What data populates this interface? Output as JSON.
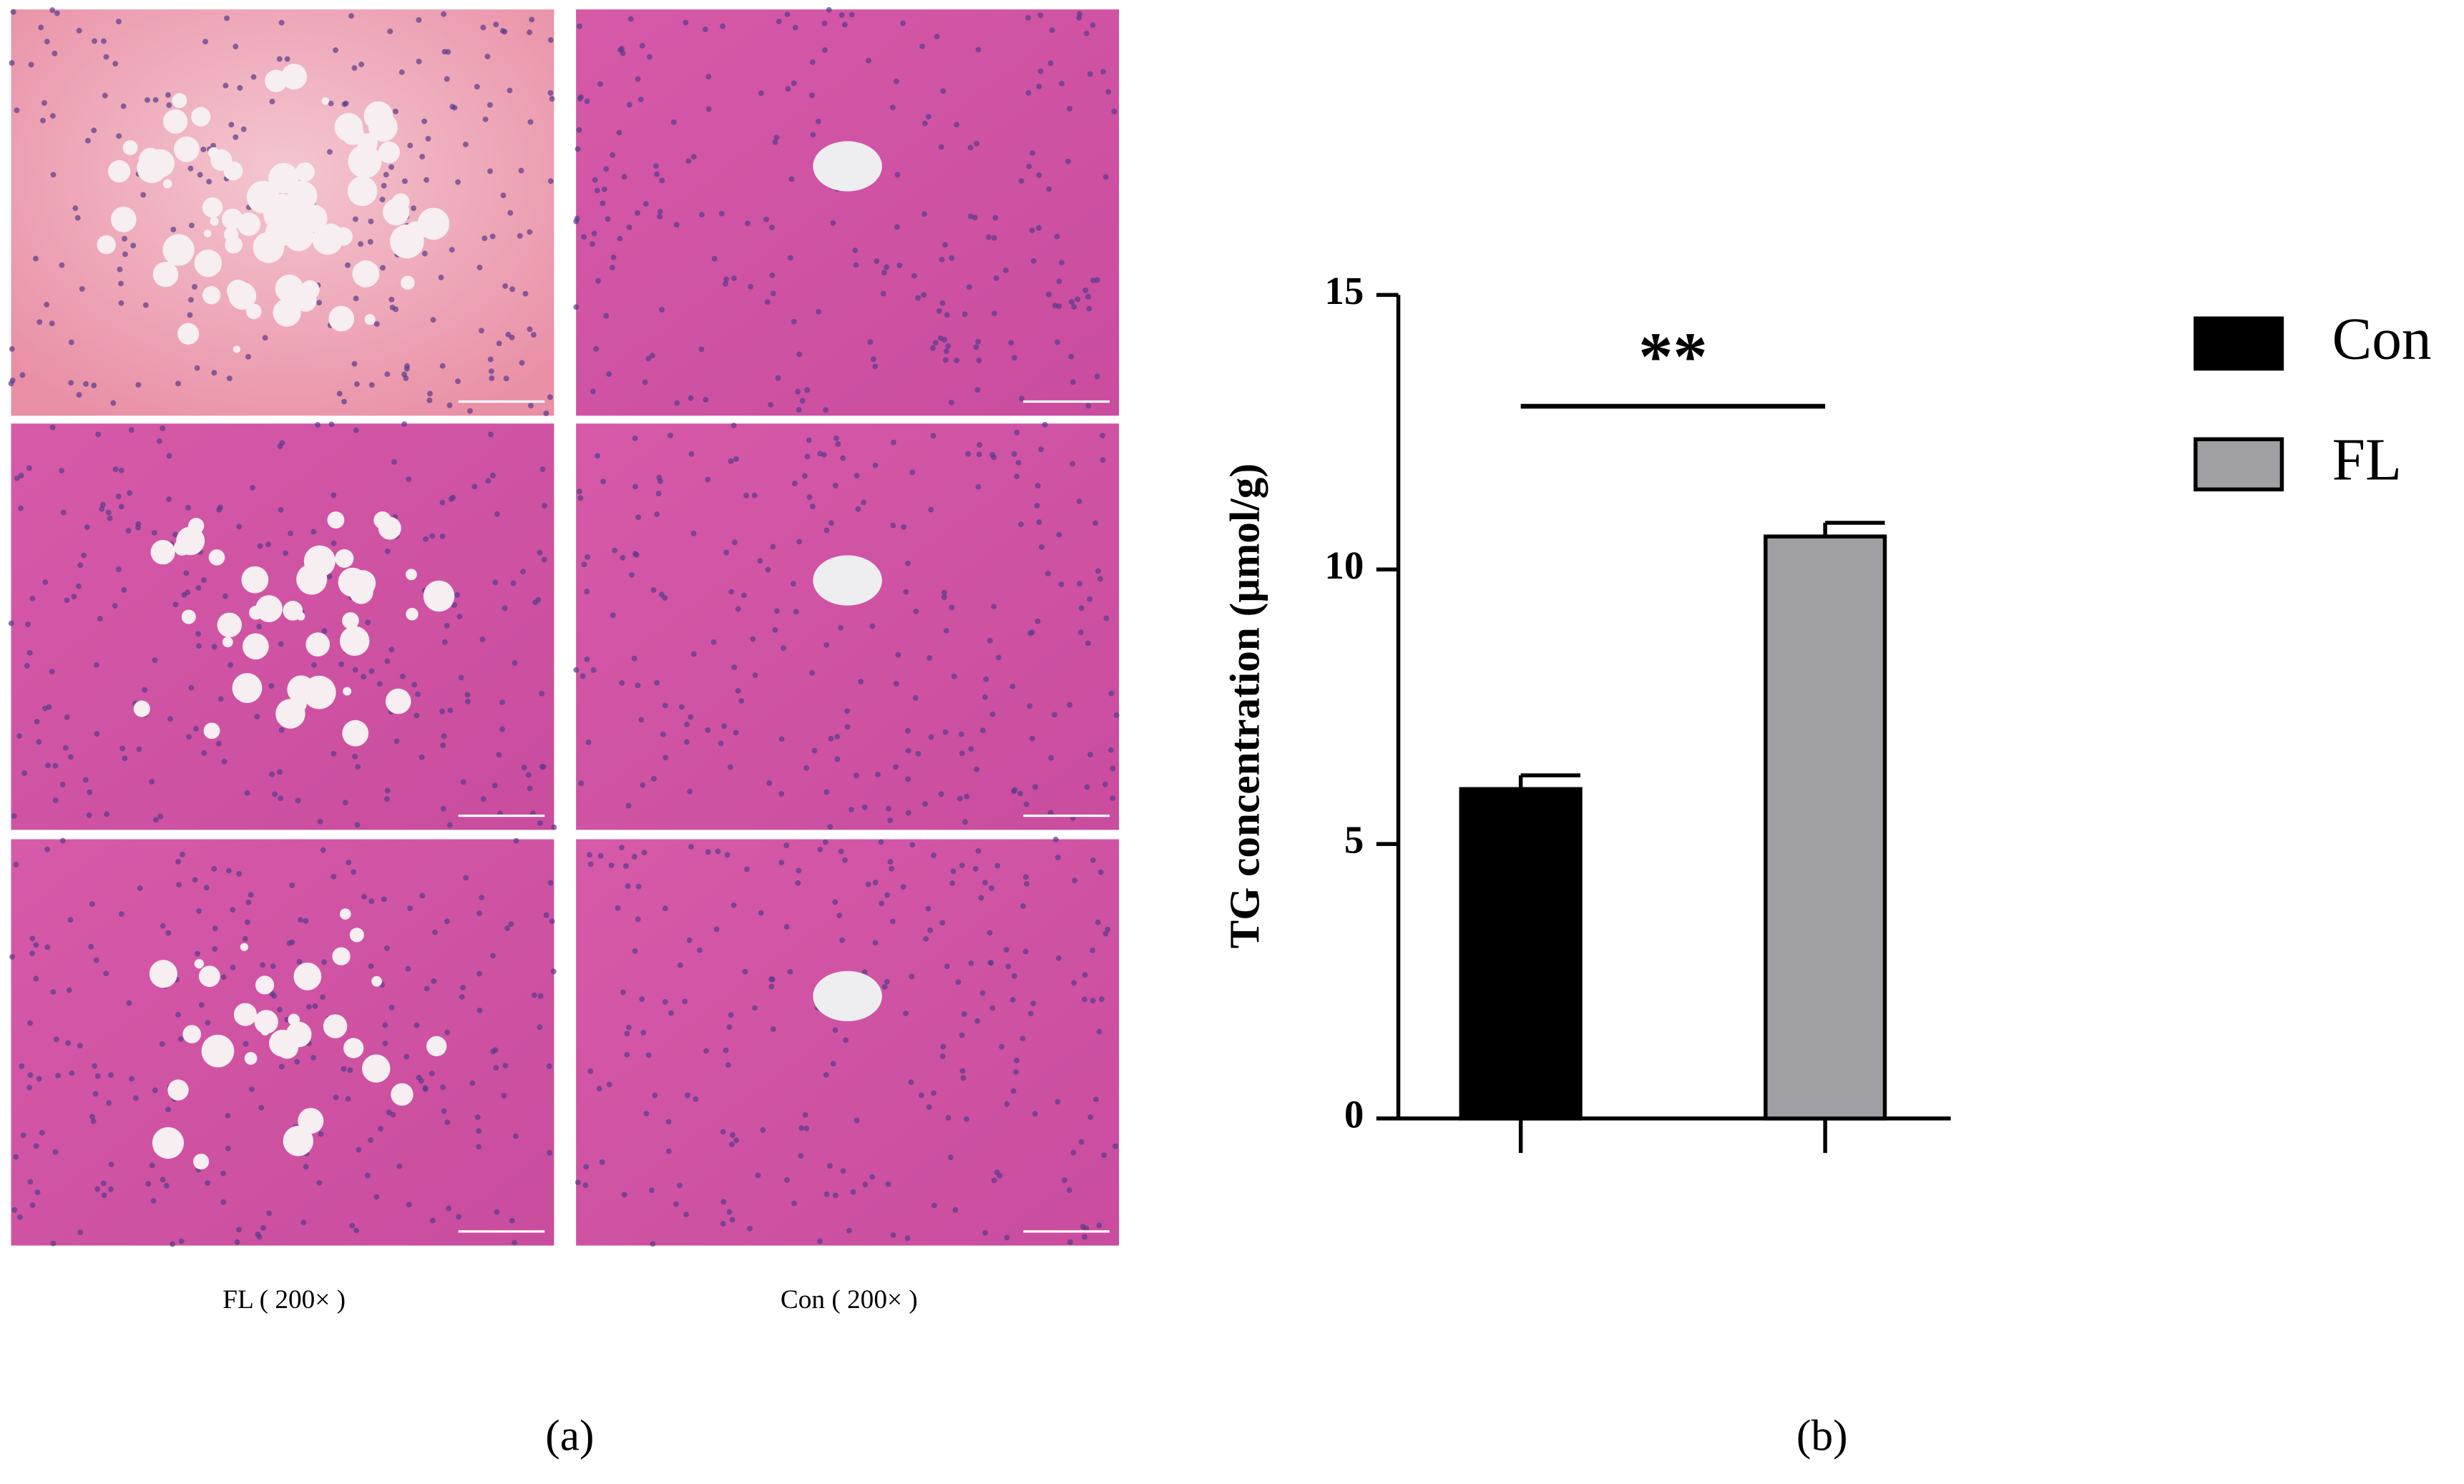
{
  "panel_a": {
    "captions": [
      "FL ( 200× )",
      "Con ( 200× )"
    ],
    "label": "(a)"
  },
  "panel_b_label": "(b)",
  "chart_data": {
    "type": "bar",
    "ylabel": "TG concentration (μmol/g)",
    "categories": [
      null,
      null
    ],
    "series": [
      {
        "name": "Con",
        "color": "#000000",
        "values": [
          6.0,
          null
        ],
        "errors": [
          0.25,
          null
        ]
      },
      {
        "name": "FL",
        "color": "#a0a0a4",
        "values": [
          null,
          10.6
        ],
        "errors": [
          null,
          0.25
        ]
      }
    ],
    "ylim": [
      0,
      15
    ],
    "yticks": [
      0,
      5,
      10,
      15
    ],
    "annotations": [
      {
        "text": "**"
      }
    ],
    "legend": "right"
  }
}
